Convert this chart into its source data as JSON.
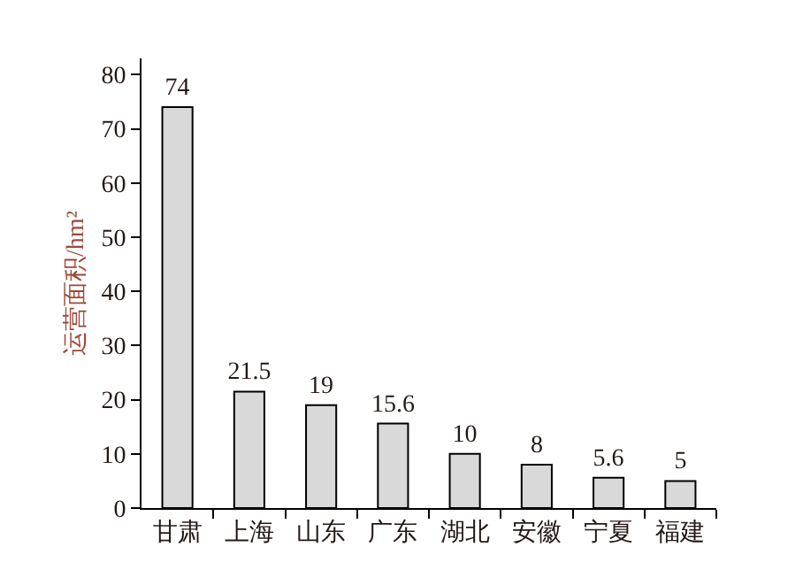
{
  "chart_data": {
    "type": "bar",
    "ylabel": "运营面积/hm²",
    "categories": [
      "甘肃",
      "上海",
      "山东",
      "广东",
      "湖北",
      "安徽",
      "宁夏",
      "福建"
    ],
    "values": [
      74,
      21.5,
      19,
      15.6,
      10,
      8,
      5.6,
      5
    ],
    "color": "#d9d9d9",
    "ylim": [
      0,
      83
    ],
    "yticks": [
      0,
      10,
      20,
      30,
      40,
      50,
      60,
      70,
      80
    ],
    "data_labels": true
  }
}
